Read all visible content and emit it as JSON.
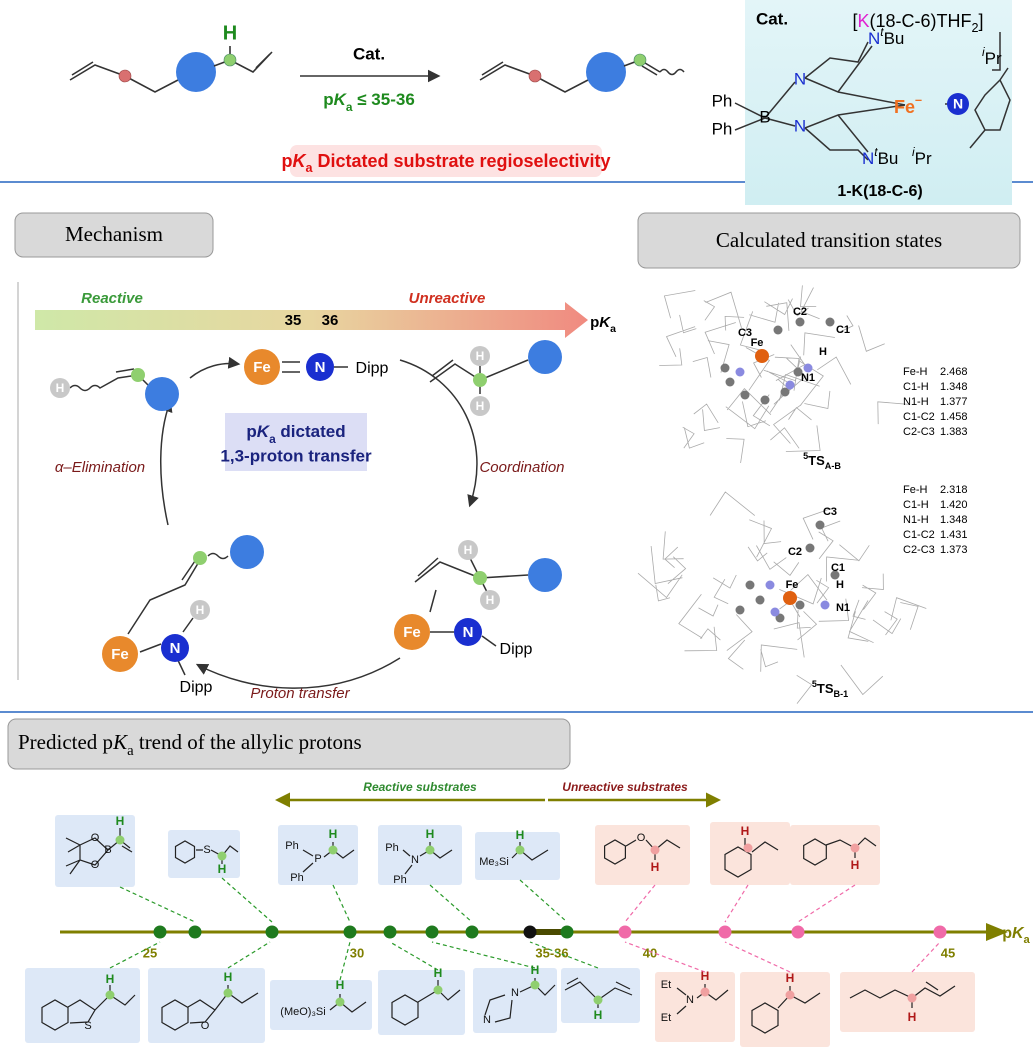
{
  "scheme": {
    "reactant_h": "H",
    "arrow_label": "Cat.",
    "condition": {
      "p": "p",
      "K": "K",
      "a": "a",
      "rest": " ≤ 35-36"
    },
    "banner": {
      "p": "p",
      "K": "K",
      "a": "a",
      "rest": " Dictated substrate regioselectivity"
    }
  },
  "catalyst": {
    "label": "Cat.",
    "counterion": {
      "open": "[",
      "K": "K",
      "mid": "(18-C-6)THF",
      "sub": "2",
      "close": "]"
    },
    "atoms": {
      "ph1": "Ph",
      "b": "B",
      "ph2": "Ph",
      "n1": "N",
      "n2": "N",
      "n3": "N",
      "t1": "t",
      "bu1": "Bu",
      "n4": "N",
      "t2": "t",
      "bu2": "Bu",
      "fe": "Fe",
      "minus": "–",
      "n5": "N",
      "i1": "i",
      "pr1": "Pr",
      "i2": "i",
      "pr2": "Pr"
    },
    "name": "1-K(18-C-6)"
  },
  "mechanism": {
    "title": "Mechanism",
    "reactive": "Reactive",
    "unreactive": "Unreactive",
    "tick1": "35",
    "tick2": "36",
    "axis": {
      "p": "p",
      "K": "K",
      "a": "a"
    },
    "center": {
      "line1": {
        "p": "p",
        "K": "K",
        "a": "a",
        "rest": " dictated"
      },
      "line2": "1,3-proton transfer"
    },
    "steps": {
      "elimination": "α–Elimination",
      "coordination": "Coordination",
      "proton_transfer": "Proton transfer"
    },
    "species": {
      "top": {
        "fe": "Fe",
        "n": "N",
        "dipp": "Dipp"
      },
      "right_top": {
        "h1": "H",
        "h2": "H"
      },
      "right_bottom": {
        "h1": "H",
        "h2": "H",
        "fe": "Fe",
        "n": "N",
        "dipp": "Dipp"
      },
      "left_bottom": {
        "fe": "Fe",
        "n": "N",
        "h": "H",
        "dipp": "Dipp"
      },
      "left_top": {
        "h": "H"
      }
    }
  },
  "transition_states": {
    "title": "Calculated transition states",
    "ts1": {
      "atoms": {
        "c2": "C2",
        "c3": "C3",
        "c1": "C1",
        "fe": "Fe",
        "h": "H",
        "n1": "N1"
      },
      "distances": [
        [
          "Fe-H",
          "2.468"
        ],
        [
          "C1-H",
          "1.348"
        ],
        [
          "N1-H",
          "1.377"
        ],
        [
          "C1-C2",
          "1.458"
        ],
        [
          "C2-C3",
          "1.383"
        ]
      ],
      "name": {
        "sup": "5",
        "main": "TS",
        "sub": "A-B"
      }
    },
    "ts2": {
      "atoms": {
        "c3": "C3",
        "c2": "C2",
        "c1": "C1",
        "h": "H",
        "fe": "Fe",
        "n1": "N1"
      },
      "distances": [
        [
          "Fe-H",
          "2.318"
        ],
        [
          "C1-H",
          "1.420"
        ],
        [
          "N1-H",
          "1.348"
        ],
        [
          "C1-C2",
          "1.431"
        ],
        [
          "C2-C3",
          "1.373"
        ]
      ],
      "name": {
        "sup": "5",
        "main": "TS",
        "sub": "B-1"
      }
    }
  },
  "trend": {
    "title": {
      "main": "Predicted p",
      "K": "K",
      "a": "a",
      "rest": " trend of the allylic protons"
    },
    "reactive": "Reactive substrates",
    "unreactive": "Unreactive substrates",
    "ticks": [
      "25",
      "30",
      "35-36",
      "40",
      "45"
    ],
    "axis": {
      "p": "p",
      "K": "K",
      "a": "a"
    },
    "top": [
      [
        "O",
        "B",
        "O",
        "H"
      ],
      [
        "S",
        "H"
      ],
      [
        "Ph",
        "P",
        "Ph",
        "H"
      ],
      [
        "Ph",
        "N",
        "Ph",
        "H"
      ],
      [
        "Me₃Si",
        "H"
      ],
      [
        "O",
        "H"
      ],
      [
        "H"
      ],
      [
        "H"
      ]
    ],
    "bottom": [
      [
        "S",
        "H"
      ],
      [
        "O",
        "H"
      ],
      [
        "(MeO)₃Si",
        "H"
      ],
      [
        "H"
      ],
      [
        "N",
        "N",
        "H"
      ],
      [
        "H"
      ],
      [
        "Et",
        "N",
        "Et",
        "H"
      ],
      [
        "H"
      ],
      [
        "H"
      ]
    ]
  }
}
